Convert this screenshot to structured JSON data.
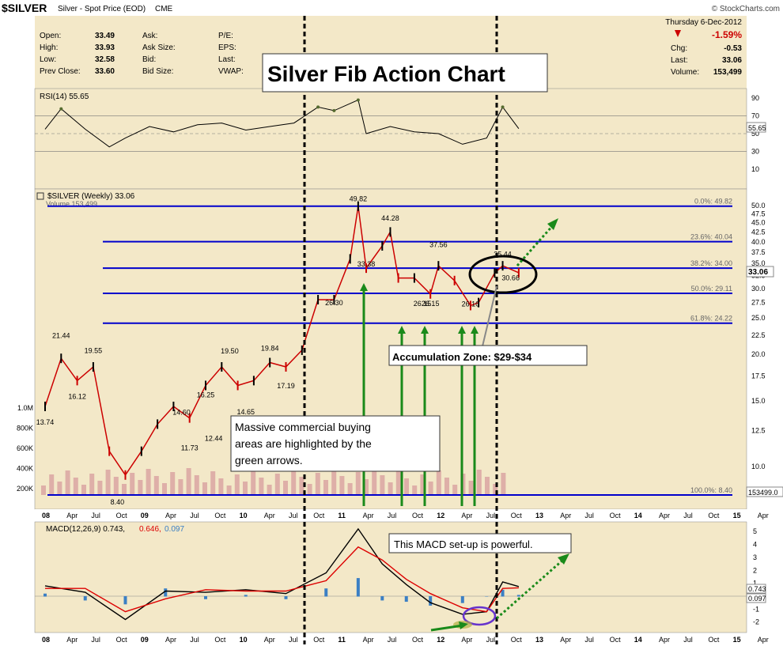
{
  "header": {
    "symbol": "$SILVER",
    "name": "Silver - Spot Price (EOD)",
    "exchange": "CME",
    "brand": "© StockCharts.com",
    "date": "Thursday  6-Dec-2012",
    "pct_change": "-1.59%",
    "chg_label": "Chg:",
    "chg_value": "-0.53",
    "last_label": "Last:",
    "last_value": "33.06",
    "volume_label": "Volume:",
    "volume_value": "153,499",
    "quote": [
      {
        "label": "Open:",
        "value": "33.49"
      },
      {
        "label": "High:",
        "value": "33.93"
      },
      {
        "label": "Low:",
        "value": "32.58"
      },
      {
        "label": "Prev Close:",
        "value": "33.60"
      }
    ],
    "quote2": [
      "Ask:",
      "Ask Size:",
      "Bid:",
      "Bid Size:"
    ],
    "quote3": [
      "P/E:",
      "EPS:",
      "Last:",
      "VWAP:"
    ]
  },
  "colors": {
    "panel_bg": "#f3e8c8",
    "fib_line": "#0000cc",
    "up_candle": "#000000",
    "down_candle": "#cc0000",
    "arrow_green": "#1a8a1a",
    "macd_line": "#000000",
    "signal_line": "#dd0000",
    "histogram": "#3b7fc4",
    "rsi_fill": "#556b2f",
    "volume_bar": "#d8a0a0"
  },
  "annotations": {
    "title": "Silver Fib Action Chart",
    "commercial": [
      "Massive commercial buying",
      "areas are highlighted by the",
      "green arrows."
    ],
    "accumulation": "Accumulation Zone: $29-$34",
    "macd_note": "This MACD set-up is powerful."
  },
  "rsi_panel": {
    "label": "RSI(14) 55.65",
    "value_tag": "55.65",
    "axis": [
      "90",
      "70",
      "50",
      "30",
      "10"
    ]
  },
  "price_panel": {
    "label": "$SILVER (Weekly) 33.06",
    "volume_label": "Volume 153,499",
    "value_tag": "33.06",
    "volume_tag": "153499.0",
    "axis": [
      "50.0",
      "47.5",
      "45.0",
      "42.5",
      "40.0",
      "37.5",
      "35.0",
      "32.5",
      "30.0",
      "27.5",
      "25.0",
      "22.5",
      "20.0",
      "17.5",
      "15.0",
      "12.5",
      "10.0"
    ],
    "volume_axis": [
      "1.0M",
      "800K",
      "600K",
      "400K",
      "200K"
    ]
  },
  "macd_panel": {
    "label_main": "MACD(12,26,9) 0.743,",
    "label_signal": "0.646,",
    "label_hist": "0.097",
    "tag_macd": "0.743",
    "tag_hist": "0.097",
    "axis": [
      "5",
      "4",
      "3",
      "2",
      "1",
      "0",
      "-1",
      "-2"
    ]
  },
  "time_axis": [
    "08",
    "Apr",
    "Jul",
    "Oct",
    "09",
    "Apr",
    "Jul",
    "Oct",
    "10",
    "Apr",
    "Jul",
    "Oct",
    "11",
    "Apr",
    "Jul",
    "Oct",
    "12",
    "Apr",
    "Jul",
    "Oct",
    "13",
    "Apr",
    "Jul",
    "Oct",
    "14",
    "Apr",
    "Jul",
    "Oct",
    "15",
    "Apr"
  ],
  "chart_data": [
    {
      "type": "line",
      "title": "$SILVER (Weekly)",
      "fib_levels": [
        {
          "label": "0.0%: 49.82",
          "value": 49.82
        },
        {
          "label": "23.6%: 40.04",
          "value": 40.04
        },
        {
          "label": "38.2%: 34.00",
          "value": 34.0
        },
        {
          "label": "50.0%: 29.11",
          "value": 29.11
        },
        {
          "label": "61.8%: 24.22",
          "value": 24.22
        },
        {
          "label": "100.0%: 8.40",
          "value": 8.4
        }
      ],
      "ylim": [
        8.4,
        50
      ],
      "y_scale": "log",
      "series": [
        {
          "x": [
            "2008-01",
            "2008-03",
            "2008-05",
            "2008-07",
            "2008-09",
            "2008-11",
            "2009-01",
            "2009-03",
            "2009-05",
            "2009-07",
            "2009-09",
            "2009-11",
            "2010-01",
            "2010-03",
            "2010-05",
            "2010-07",
            "2010-09",
            "2010-11",
            "2011-01",
            "2011-03",
            "2011-04",
            "2011-05",
            "2011-07",
            "2011-08",
            "2011-09",
            "2011-11",
            "2012-01",
            "2012-02",
            "2012-04",
            "2012-06",
            "2012-07",
            "2012-09",
            "2012-10",
            "2012-12"
          ],
          "values": [
            14.5,
            19.5,
            17,
            18.5,
            11,
            9.5,
            11,
            13,
            14.5,
            13.5,
            16.5,
            18.5,
            16.5,
            17,
            19,
            18.5,
            20.5,
            28,
            28,
            36,
            49.8,
            34,
            39,
            42.5,
            32,
            32,
            29,
            34.5,
            31.5,
            27,
            27.5,
            33,
            34.5,
            33.06
          ]
        }
      ],
      "point_labels": [
        {
          "text": "21.44",
          "x": "2008-03",
          "y": 21.44
        },
        {
          "text": "16.12",
          "x": "2008-05",
          "y": 16.12
        },
        {
          "text": "19.55",
          "x": "2008-07",
          "y": 19.55
        },
        {
          "text": "13.74",
          "x": "2008-01",
          "y": 13.74
        },
        {
          "text": "8.40",
          "x": "2008-10",
          "y": 8.4
        },
        {
          "text": "14.60",
          "x": "2009-06",
          "y": 14.6
        },
        {
          "text": "11.73",
          "x": "2009-07",
          "y": 11.73
        },
        {
          "text": "16.25",
          "x": "2009-09",
          "y": 16.25
        },
        {
          "text": "12.44",
          "x": "2009-10",
          "y": 12.44
        },
        {
          "text": "19.50",
          "x": "2009-12",
          "y": 19.5
        },
        {
          "text": "14.65",
          "x": "2010-02",
          "y": 14.65
        },
        {
          "text": "19.84",
          "x": "2010-05",
          "y": 19.84
        },
        {
          "text": "17.19",
          "x": "2010-07",
          "y": 17.19
        },
        {
          "text": "26.30",
          "x": "2011-01",
          "y": 26.3
        },
        {
          "text": "49.82",
          "x": "2011-04",
          "y": 49.82
        },
        {
          "text": "33.38",
          "x": "2011-05",
          "y": 33.38
        },
        {
          "text": "44.28",
          "x": "2011-08",
          "y": 44.28
        },
        {
          "text": "26.15",
          "x": "2011-12",
          "y": 26.15
        },
        {
          "text": "26.15",
          "x": "2012-01",
          "y": 26.15
        },
        {
          "text": "37.56",
          "x": "2012-02",
          "y": 37.56
        },
        {
          "text": "26.10",
          "x": "2012-06",
          "y": 26.1
        },
        {
          "text": "35.44",
          "x": "2012-10",
          "y": 35.44
        },
        {
          "text": "30.66",
          "x": "2012-11",
          "y": 30.66
        }
      ]
    },
    {
      "type": "line",
      "title": "RSI(14)",
      "ylim": [
        0,
        100
      ],
      "reference_lines": [
        70,
        50,
        30
      ],
      "series": [
        {
          "name": "RSI(14)",
          "x": [
            "2008-01",
            "2008-03",
            "2008-06",
            "2008-09",
            "2008-11",
            "2009-02",
            "2009-05",
            "2009-08",
            "2009-11",
            "2010-02",
            "2010-05",
            "2010-08",
            "2010-11",
            "2011-01",
            "2011-04",
            "2011-05",
            "2011-08",
            "2011-11",
            "2012-02",
            "2012-05",
            "2012-08",
            "2012-10",
            "2012-12"
          ],
          "values": [
            55,
            78,
            55,
            35,
            45,
            58,
            52,
            60,
            62,
            54,
            58,
            62,
            80,
            76,
            88,
            50,
            58,
            52,
            50,
            38,
            45,
            80,
            55.65
          ]
        }
      ]
    },
    {
      "type": "line",
      "title": "MACD(12,26,9)",
      "ylim": [
        -2.2,
        5.5
      ],
      "series": [
        {
          "name": "MACD(12,26,9)",
          "x": [
            "2008-01",
            "2008-06",
            "2008-11",
            "2009-04",
            "2009-09",
            "2010-02",
            "2010-07",
            "2010-12",
            "2011-04",
            "2011-07",
            "2011-10",
            "2012-01",
            "2012-05",
            "2012-08",
            "2012-10",
            "2012-12"
          ],
          "values": [
            0.8,
            0.3,
            -1.8,
            0.4,
            0.3,
            0.5,
            0.2,
            1.8,
            5.2,
            2.5,
            0.9,
            -0.5,
            -1.4,
            -1.2,
            1.1,
            0.743
          ]
        },
        {
          "name": "Signal",
          "x": [
            "2008-01",
            "2008-06",
            "2008-11",
            "2009-04",
            "2009-09",
            "2010-02",
            "2010-07",
            "2010-12",
            "2011-04",
            "2011-07",
            "2011-10",
            "2012-01",
            "2012-05",
            "2012-08",
            "2012-10",
            "2012-12"
          ],
          "values": [
            0.6,
            0.6,
            -1.2,
            -0.2,
            0.5,
            0.4,
            0.4,
            1.2,
            3.8,
            2.8,
            1.3,
            0.2,
            -0.9,
            -1.2,
            0.6,
            0.646
          ]
        }
      ]
    }
  ]
}
